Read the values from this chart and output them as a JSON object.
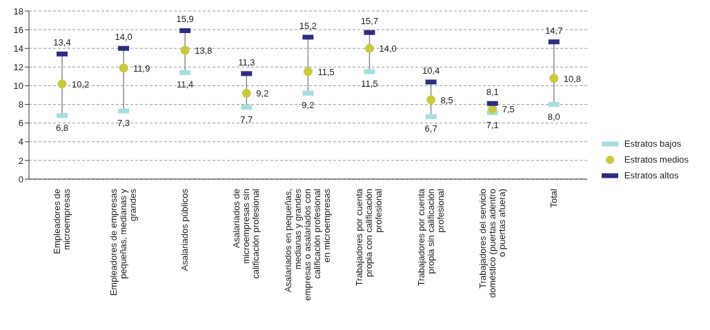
{
  "chart_data": {
    "type": "scatter",
    "categories": [
      "Empleadores de microempresas",
      "Empleadores de empresas pequeñas, medianas y grandes",
      "Asalariados públicos",
      "Asalariados de microempresas sin calificación profesional",
      "Asalariados en pequeñas, medianas y grandes empresas o asalariados con calificación profesional en microempresas",
      "Trabajadores por cuenta propia con calificación profesional",
      "Trabajadores por cuenta propia sin calificación profesional",
      "Trabajadores del servicio doméstico (puertas adentro o puertas afuera)",
      "Total"
    ],
    "series": [
      {
        "name": "Estratos bajos",
        "color": "#a6dede",
        "marker": "square",
        "values": [
          6.8,
          7.3,
          11.4,
          7.7,
          9.2,
          11.5,
          6.7,
          7.1,
          8.0
        ],
        "value_labels": [
          "6,8",
          "7,3",
          "11,4",
          "7,7",
          "9,2",
          "11,5",
          "6,7",
          "7,1",
          "8,0"
        ]
      },
      {
        "name": "Estratos medios",
        "color": "#c9c93c",
        "marker": "circle",
        "values": [
          10.2,
          11.9,
          13.8,
          9.2,
          11.5,
          14.0,
          8.5,
          7.5,
          10.8
        ],
        "value_labels": [
          "10,2",
          "11,9",
          "13,8",
          "9,2",
          "11,5",
          "14,0",
          "8,5",
          "7,5",
          "10,8"
        ]
      },
      {
        "name": "Estratos altos",
        "color": "#2e2d7c",
        "marker": "square",
        "values": [
          13.4,
          14.0,
          15.9,
          11.3,
          15.2,
          15.7,
          10.4,
          8.1,
          14.7
        ],
        "value_labels": [
          "13,4",
          "14,0",
          "15,9",
          "11,3",
          "15,2",
          "15,7",
          "10,4",
          "8,1",
          "14,7"
        ]
      }
    ],
    "ylim": [
      0,
      18
    ],
    "yticks": [
      0,
      2,
      4,
      6,
      8,
      10,
      12,
      14,
      16,
      18
    ],
    "grid": "y",
    "legend": "right"
  }
}
